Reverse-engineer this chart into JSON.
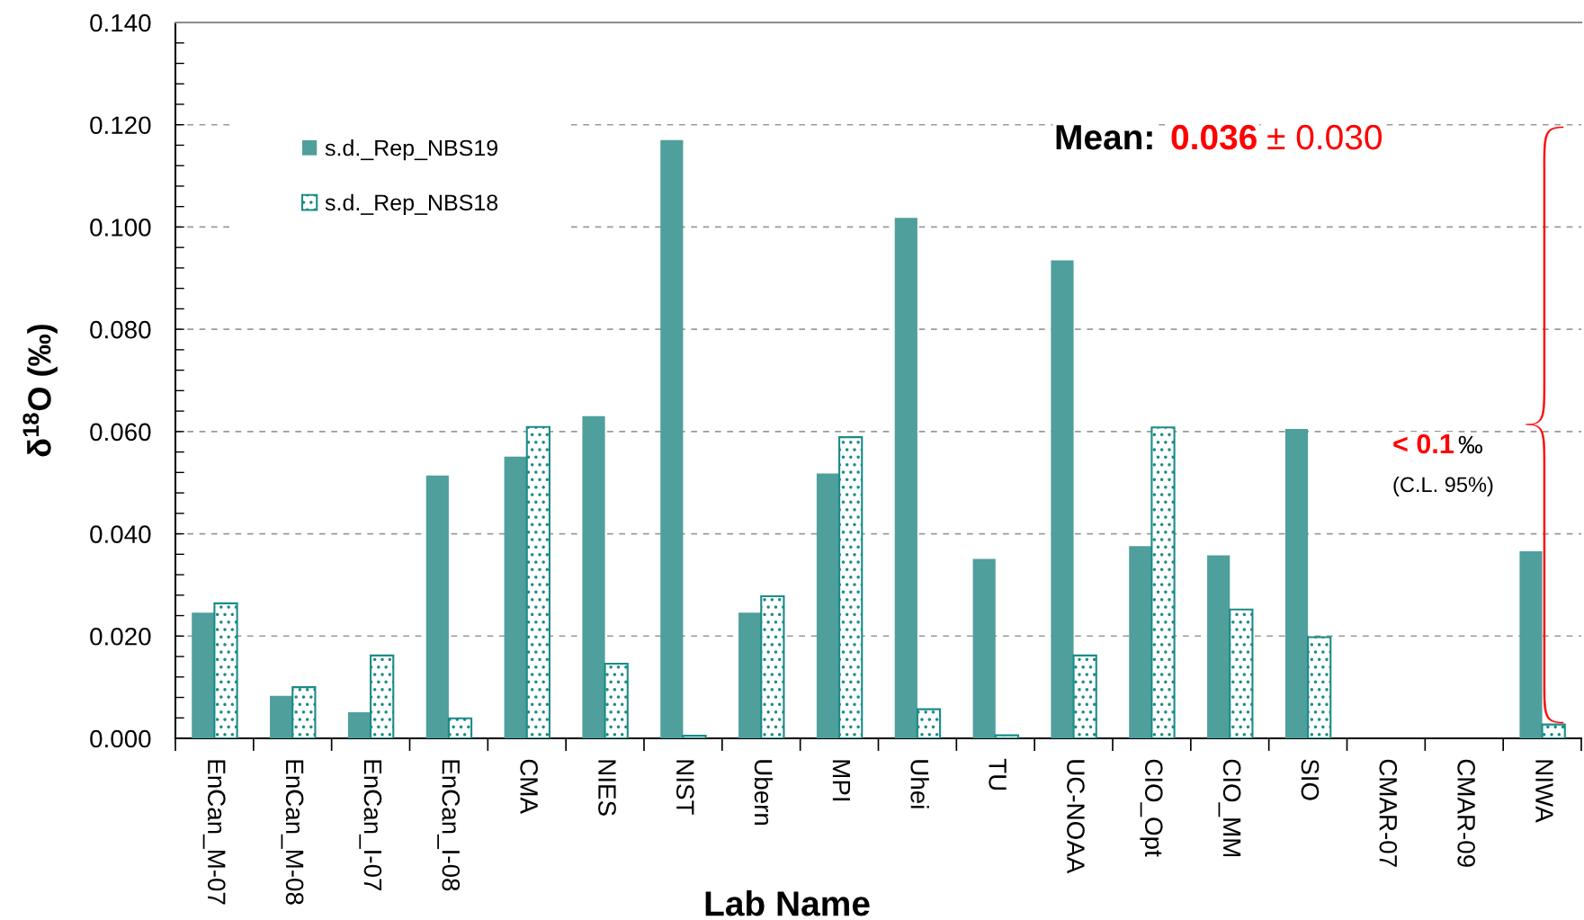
{
  "chart_data": {
    "type": "bar",
    "categories": [
      "EnCan_M-07",
      "EnCan_M-08",
      "EnCan_I-07",
      "EnCan_I-08",
      "CMA",
      "NIES",
      "NIST",
      "Ubern",
      "MPI",
      "Uhei",
      "TU",
      "UC-NOAA",
      "CIO_Opt",
      "CIO_MM",
      "SIO",
      "CMAR-07",
      "CMAR-09",
      "NIWA"
    ],
    "series": [
      {
        "name": "s.d._Rep_NBS19",
        "color": "#4f9f9c",
        "values": [
          0.0246,
          0.0083,
          0.0051,
          0.0514,
          0.0551,
          0.063,
          0.117,
          0.0246,
          0.0518,
          0.1018,
          0.0351,
          0.0935,
          0.0376,
          0.0358,
          0.0605,
          null,
          null,
          0.0366
        ]
      },
      {
        "name": "s.d._Rep_NBS18",
        "color": "#1b8c88",
        "values": [
          0.0264,
          0.01,
          0.0162,
          0.0039,
          0.0609,
          0.0146,
          0.0005,
          0.0278,
          0.0589,
          0.0057,
          0.0006,
          0.0162,
          0.0608,
          0.0252,
          0.0198,
          null,
          null,
          0.0027
        ]
      }
    ],
    "xlabel": "Lab Name",
    "ylabel": "δ$^{18}$O (‰)",
    "ylim": [
      0,
      0.14
    ],
    "yticks": [
      {
        "value": 0,
        "label": "0.000"
      },
      {
        "value": 0.004,
        "label": null
      },
      {
        "value": 0.008,
        "label": null
      },
      {
        "value": 0.012,
        "label": null
      },
      {
        "value": 0.016,
        "label": null
      },
      {
        "value": 0.02,
        "label": "0.020"
      },
      {
        "value": 0.024,
        "label": null
      },
      {
        "value": 0.028,
        "label": null
      },
      {
        "value": 0.032,
        "label": null
      },
      {
        "value": 0.036,
        "label": null
      },
      {
        "value": 0.04,
        "label": "0.040"
      },
      {
        "value": 0.044,
        "label": null
      },
      {
        "value": 0.048,
        "label": null
      },
      {
        "value": 0.052,
        "label": null
      },
      {
        "value": 0.056,
        "label": null
      },
      {
        "value": 0.06,
        "label": "0.060"
      },
      {
        "value": 0.064,
        "label": null
      },
      {
        "value": 0.068,
        "label": null
      },
      {
        "value": 0.072,
        "label": null
      },
      {
        "value": 0.076,
        "label": null
      },
      {
        "value": 0.08,
        "label": "0.080"
      },
      {
        "value": 0.084,
        "label": null
      },
      {
        "value": 0.088,
        "label": null
      },
      {
        "value": 0.092,
        "label": null
      },
      {
        "value": 0.096,
        "label": null
      },
      {
        "value": 0.1,
        "label": "0.100"
      },
      {
        "value": 0.104,
        "label": null
      },
      {
        "value": 0.108,
        "label": null
      },
      {
        "value": 0.112,
        "label": null
      },
      {
        "value": 0.116,
        "label": null
      },
      {
        "value": 0.12,
        "label": "0.120"
      },
      {
        "value": 0.124,
        "label": null
      },
      {
        "value": 0.128,
        "label": null
      },
      {
        "value": 0.132,
        "label": null
      },
      {
        "value": 0.136,
        "label": null
      },
      {
        "value": 0.14,
        "label": "0.140"
      }
    ],
    "grid": "y",
    "legend": "top left",
    "annotations": [
      "Mean:",
      "0.036",
      "± 0.030",
      "< 0.1",
      "‰",
      "(C.L. 95%)"
    ]
  }
}
